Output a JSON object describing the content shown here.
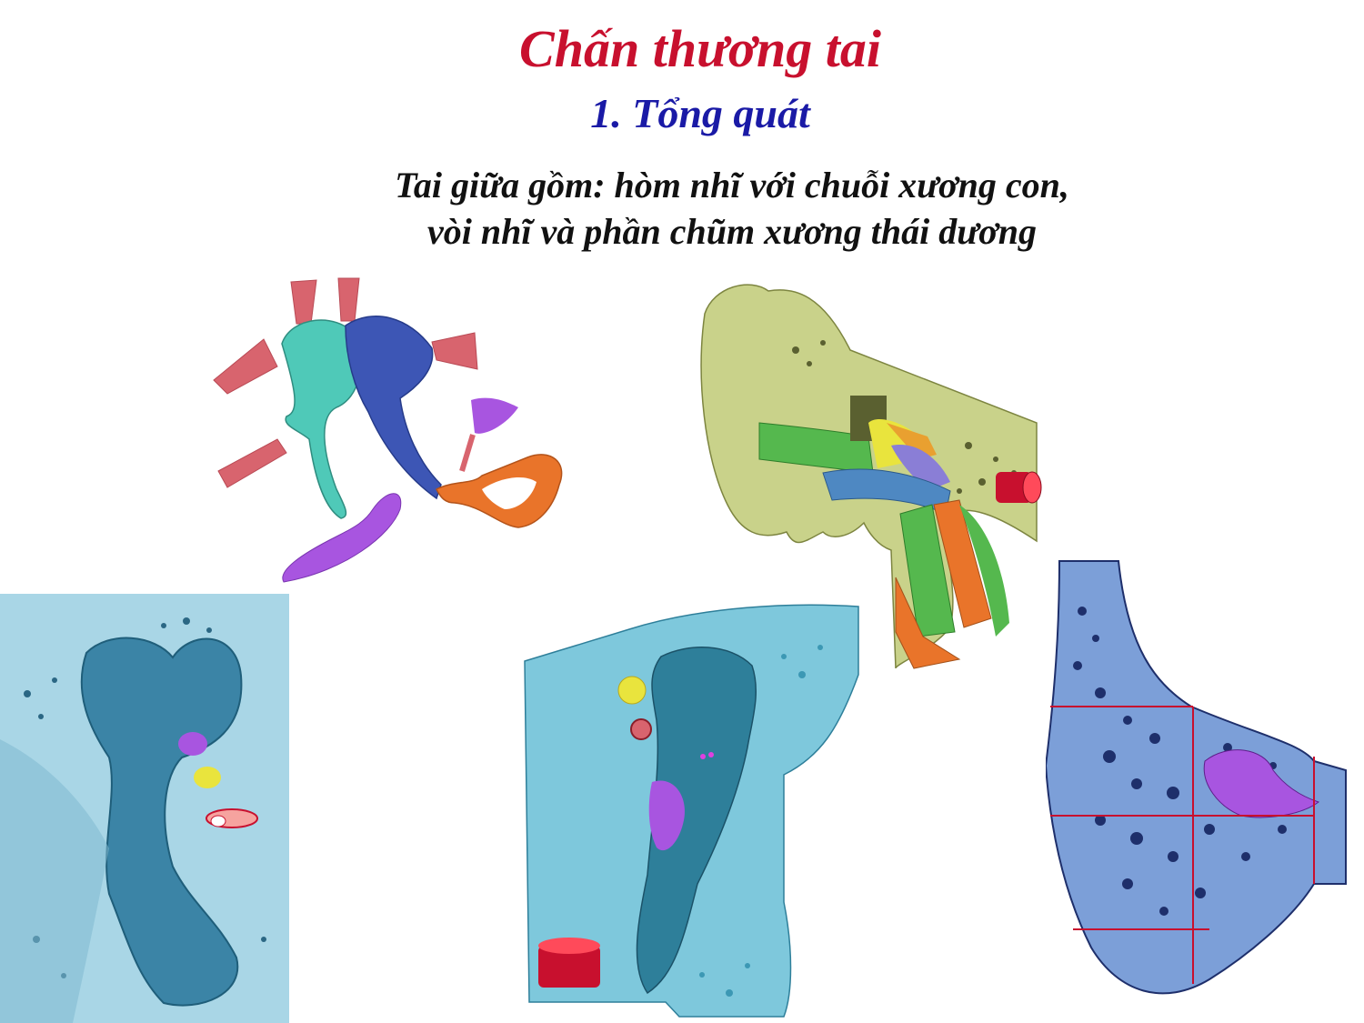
{
  "slide": {
    "title": "Chấn thương tai",
    "section": "1. Tổng quát",
    "description_lines": [
      "Tai giữa gồm: hòm nhĩ với chuỗi xương con,",
      "vòi nhĩ và phần chũm xương thái dương"
    ]
  },
  "figures": [
    {
      "id": "ossicles-illustration",
      "colors": [
        "#4fc9b8",
        "#3d56b5",
        "#e9742a",
        "#a855e0",
        "#d8646e"
      ]
    },
    {
      "id": "ear-cross-section",
      "colors": [
        "#c9d28a",
        "#55b84e",
        "#8a7ed6",
        "#e9742a",
        "#c8102e"
      ]
    },
    {
      "id": "middle-ear-cast-left",
      "colors": [
        "#a9d6e6",
        "#3b84a6"
      ]
    },
    {
      "id": "middle-ear-cast-center",
      "colors": [
        "#7ec8dc",
        "#2e7f9a"
      ]
    },
    {
      "id": "mastoid-section",
      "colors": [
        "#7c9fd8",
        "#1e2f6b",
        "#c8102e",
        "#a855e0"
      ]
    }
  ]
}
